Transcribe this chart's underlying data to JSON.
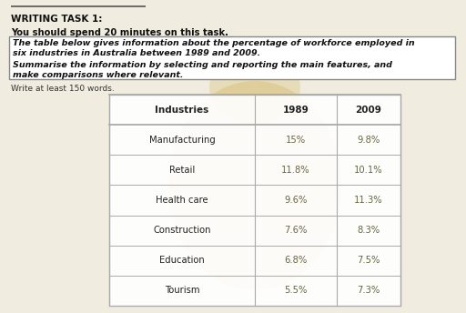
{
  "title_bold": "WRITING TASK 1:",
  "subtitle_bold": "You should spend 20 minutes on this task.",
  "task_text_line1": "The table below gives information about the percentage of workforce employed in",
  "task_text_line2": "six industries in Australia between 1989 and 2009.",
  "task_text_line3": "Summarise the information by selecting and reporting the main features, and",
  "task_text_line4": "make comparisons where relevant.",
  "footnote": "Write at least 150 words.",
  "col_headers": [
    "Industries",
    "1989",
    "2009"
  ],
  "rows": [
    [
      "Manufacturing",
      "15%",
      "9.8%"
    ],
    [
      "Retail",
      "11.8%",
      "10.1%"
    ],
    [
      "Health care",
      "9.6%",
      "11.3%"
    ],
    [
      "Construction",
      "7.6%",
      "8.3%"
    ],
    [
      "Education",
      "6.8%",
      "7.5%"
    ],
    [
      "Tourism",
      "5.5%",
      "7.3%"
    ]
  ],
  "page_bg": "#f0ede0",
  "header_color": "#222222",
  "row_text_color": "#666644",
  "border_color": "#aaaaaa",
  "box_border_color": "#888888",
  "watermark_color": "#c8a030",
  "watermark_alpha": 0.22
}
